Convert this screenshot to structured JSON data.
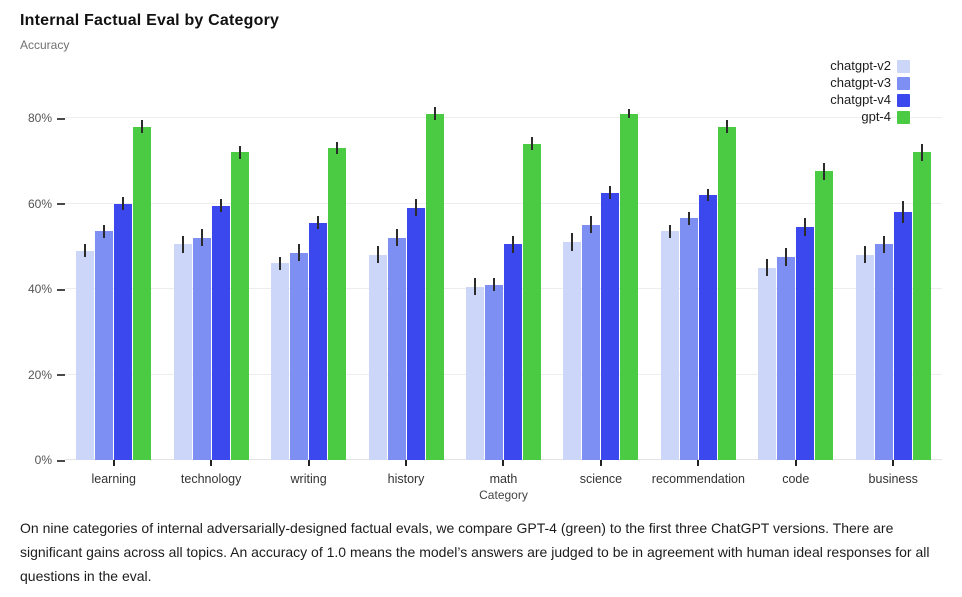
{
  "title": "Internal Factual Eval by Category",
  "subtitle": "Accuracy",
  "chart_data": {
    "type": "bar",
    "title": "Internal Factual Eval by Category",
    "ylabel": "Accuracy",
    "xlabel": "Category",
    "categories": [
      "learning",
      "technology",
      "writing",
      "history",
      "math",
      "science",
      "recommendation",
      "code",
      "business"
    ],
    "series": [
      {
        "name": "chatgpt-v2",
        "color": "#ccd6f8",
        "values": [
          49,
          50.5,
          46,
          48,
          40.5,
          51,
          53.5,
          45,
          48
        ],
        "errors": [
          1.5,
          2,
          1.5,
          2,
          2,
          2,
          1.5,
          2,
          2
        ]
      },
      {
        "name": "chatgpt-v3",
        "color": "#7d8ff2",
        "values": [
          53.5,
          52,
          48.5,
          52,
          41,
          55,
          56.5,
          47.5,
          50.5
        ],
        "errors": [
          1.5,
          2,
          2,
          2,
          1.5,
          2,
          1.5,
          2,
          2
        ]
      },
      {
        "name": "chatgpt-v4",
        "color": "#3a48ee",
        "values": [
          60,
          59.5,
          55.5,
          59,
          50.5,
          62.5,
          62,
          54.5,
          58
        ],
        "errors": [
          1.5,
          1.5,
          1.5,
          2,
          2,
          1.5,
          1.5,
          2,
          2.5
        ]
      },
      {
        "name": "gpt-4",
        "color": "#4bca43",
        "values": [
          78,
          72,
          73,
          81,
          74,
          81,
          78,
          67.5,
          72
        ],
        "errors": [
          1.5,
          1.5,
          1.5,
          1.5,
          1.5,
          1,
          1.5,
          2,
          2
        ]
      }
    ],
    "y_ticks": [
      "0%",
      "20%",
      "40%",
      "60%",
      "80%"
    ],
    "y_tick_values": [
      0,
      20,
      40,
      60,
      80
    ],
    "ylim": [
      0,
      85.4
    ],
    "grid": true,
    "legend_position": "top-right",
    "units": "percent accuracy"
  },
  "caption": "On nine categories of internal adversarially-designed factual evals, we compare GPT-4 (green) to the first three ChatGPT versions. There are significant gains across all topics. An accuracy of 1.0 means the model’s answers are judged to be in agreement with human ideal responses for all questions in the eval."
}
